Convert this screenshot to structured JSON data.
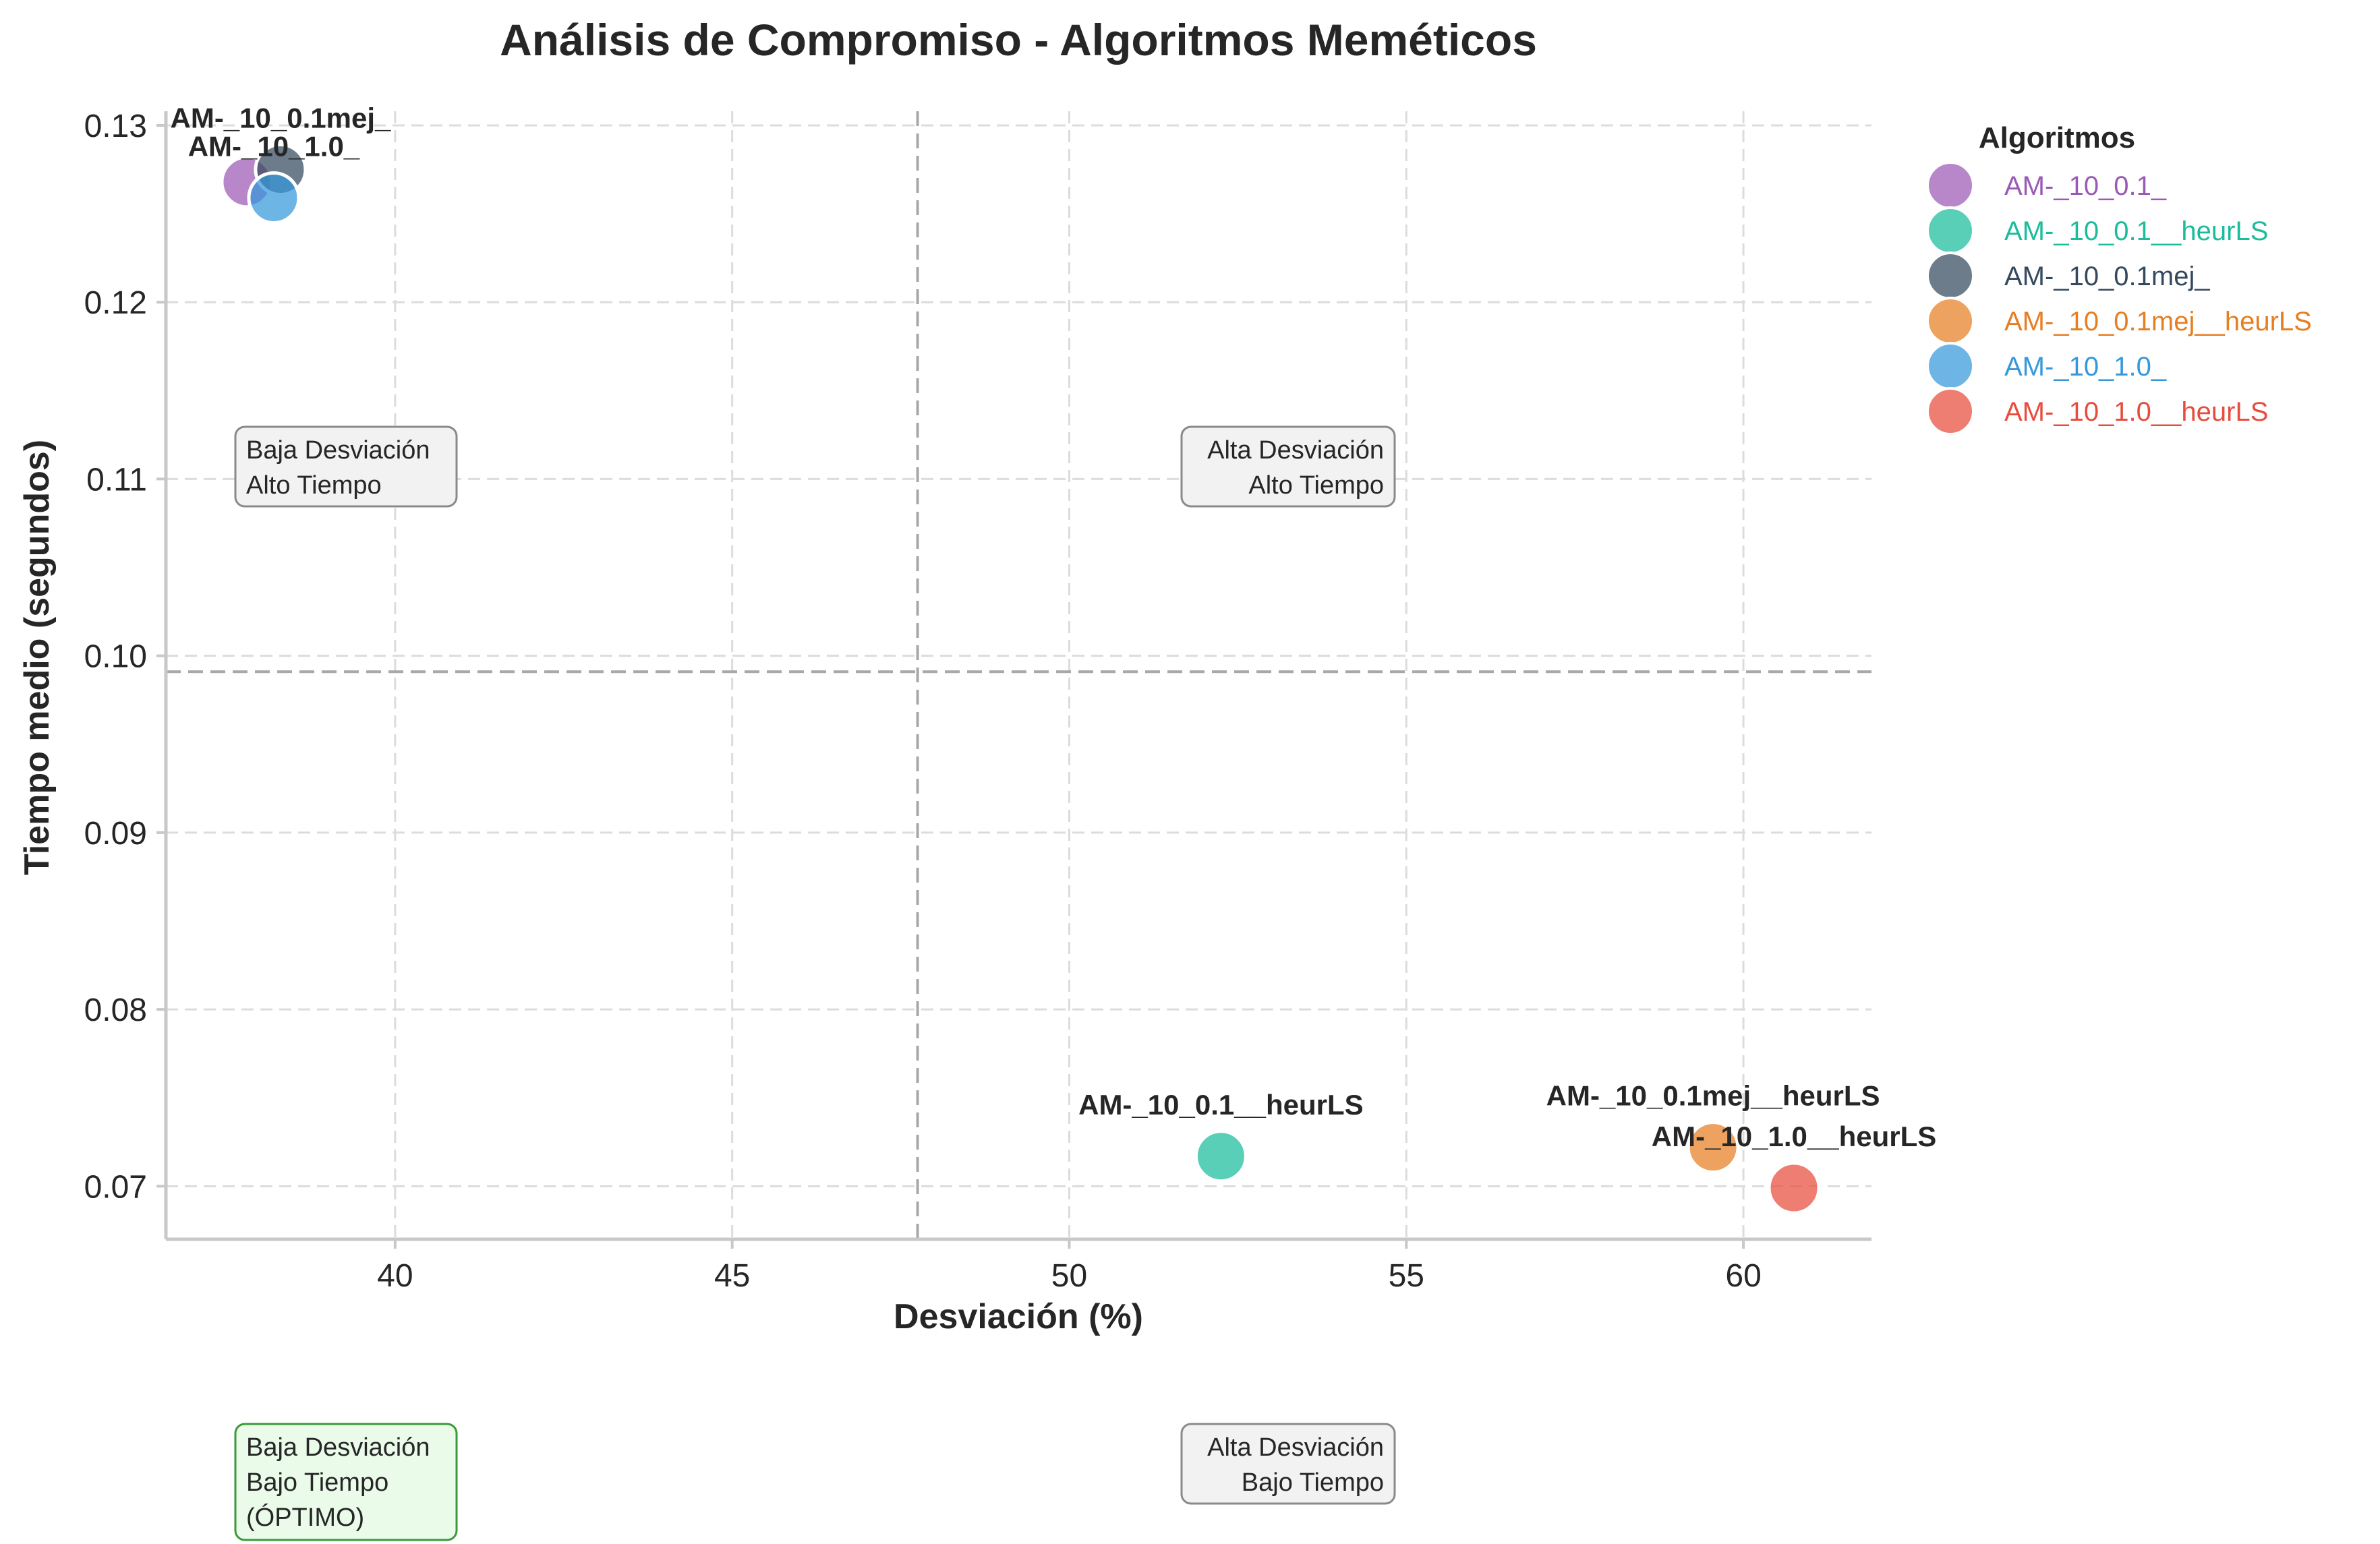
{
  "chart_data": {
    "type": "scatter",
    "title": "Análisis de Compromiso - Algoritmos Meméticos",
    "xlabel": "Desviación (%)",
    "ylabel": "Tiempo medio (segundos)",
    "xlim": [
      36.6,
      61.9
    ],
    "ylim": [
      0.067,
      0.1308
    ],
    "xticks": [
      40,
      45,
      50,
      55,
      60
    ],
    "yticks": [
      0.07,
      0.08,
      0.09,
      0.1,
      0.11,
      0.12,
      0.13
    ],
    "xtick_labels": [
      "40",
      "45",
      "50",
      "55",
      "60"
    ],
    "ytick_labels": [
      "0.07",
      "0.08",
      "0.09",
      "0.10",
      "0.11",
      "0.12",
      "0.13"
    ],
    "grid": true,
    "legend": {
      "title": "Algoritmos",
      "position": "outside-right"
    },
    "reference_lines": {
      "x": 47.75,
      "y": 0.0991
    },
    "series": [
      {
        "name": "AM-_10_0.1_",
        "x": 37.8,
        "y": 0.1268,
        "color": "#9B59B6"
      },
      {
        "name": "AM-_10_0.1__heurLS",
        "x": 52.25,
        "y": 0.0717,
        "color": "#1ABC9C"
      },
      {
        "name": "AM-_10_0.1mej_",
        "x": 38.3,
        "y": 0.1275,
        "color": "#34495E"
      },
      {
        "name": "AM-_10_0.1mej__heurLS",
        "x": 59.55,
        "y": 0.0722,
        "color": "#E67E22"
      },
      {
        "name": "AM-_10_1.0_",
        "x": 38.2,
        "y": 0.1259,
        "color": "#3498DB"
      },
      {
        "name": "AM-_10_1.0__heurLS",
        "x": 60.75,
        "y": 0.0699,
        "color": "#E74C3C"
      }
    ],
    "point_labels": [
      {
        "text": "AM-_10_0.1mej_",
        "x": 38.3,
        "y": 0.1275
      },
      {
        "text": "AM-_10_1.0_",
        "x": 38.2,
        "y": 0.1259
      },
      {
        "text": "AM-_10_0.1__heurLS",
        "x": 52.25,
        "y": 0.0717
      },
      {
        "text": "AM-_10_0.1mej__heurLS",
        "x": 59.55,
        "y": 0.0722
      },
      {
        "text": "AM-_10_1.0__heurLS",
        "x": 60.75,
        "y": 0.0699
      }
    ],
    "quadrant_boxes": [
      {
        "key": "low-dev-high-time",
        "lines": [
          "Baja Desviación",
          "Alto Tiempo"
        ]
      },
      {
        "key": "high-dev-high-time",
        "lines": [
          "Alta Desviación",
          "Alto Tiempo"
        ]
      },
      {
        "key": "low-dev-low-time",
        "lines": [
          "Baja Desviación",
          "Bajo Tiempo",
          "(ÓPTIMO)"
        ]
      },
      {
        "key": "high-dev-low-time",
        "lines": [
          "Alta Desviación",
          "Bajo Tiempo"
        ]
      }
    ]
  }
}
